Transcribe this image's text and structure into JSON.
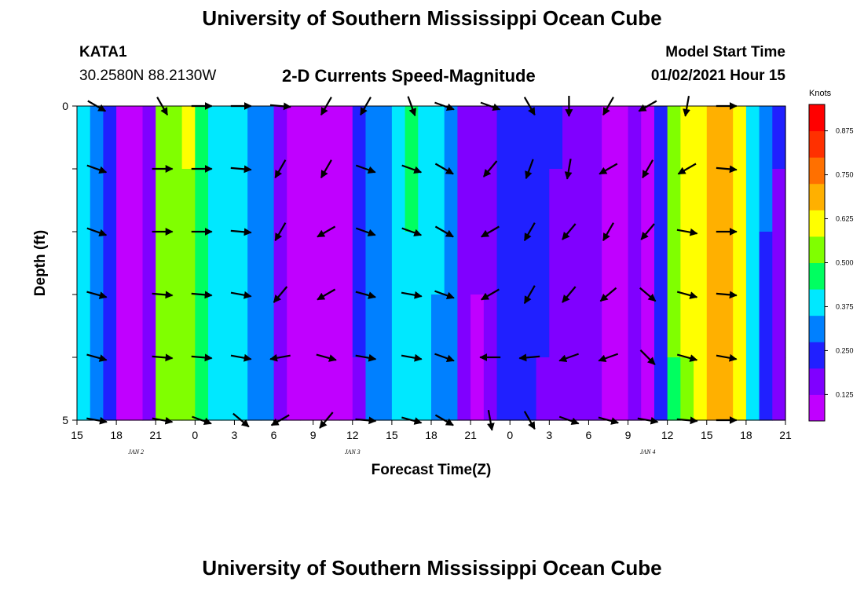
{
  "header": {
    "title": "University of Southern Mississippi Ocean Cube",
    "station_id": "KATA1",
    "station_coords": "30.2580N 88.2130W",
    "subtitle": "2-D Currents Speed-Magnitude",
    "model_start_label": "Model Start Time",
    "model_start_value": "01/02/2021 Hour 15"
  },
  "footer": {
    "title": "University of Southern Mississippi Ocean Cube"
  },
  "chart_data": {
    "type": "heatmap",
    "xlabel": "Forecast Time(Z)",
    "ylabel": "Depth (ft)",
    "units": "Knots",
    "xlim": [
      0,
      54
    ],
    "ylim": [
      5,
      0
    ],
    "x_ticks": [
      0,
      3,
      6,
      9,
      12,
      15,
      18,
      21,
      24,
      27,
      30,
      33,
      36,
      39,
      42,
      45,
      48,
      51,
      54
    ],
    "x_tick_labels": [
      "15",
      "18",
      "21",
      "0",
      "3",
      "6",
      "9",
      "12",
      "15",
      "18",
      "21",
      "0",
      "3",
      "6",
      "9",
      "12",
      "15",
      "18",
      "21"
    ],
    "y_ticks": [
      0,
      1,
      2,
      3,
      4,
      5
    ],
    "y_tick_labels": [
      "0",
      "",
      "",
      "",
      "",
      "5"
    ],
    "date_labels": [
      {
        "x": 4.5,
        "text": "JAN 2"
      },
      {
        "x": 21,
        "text": "JAN 3"
      },
      {
        "x": 43.5,
        "text": "JAN 4"
      }
    ],
    "colorbar": {
      "min": 0.05,
      "max": 0.95,
      "ticks": [
        0.125,
        0.25,
        0.375,
        0.5,
        0.625,
        0.75,
        0.875
      ],
      "tick_labels": [
        "0.125",
        "0.250",
        "0.375",
        "0.500",
        "0.625",
        "0.750",
        "0.875"
      ],
      "colors": [
        "#c000ff",
        "#8000ff",
        "#2020ff",
        "#0080ff",
        "#00e8ff",
        "#00ff60",
        "#80ff00",
        "#ffff00",
        "#ffb000",
        "#ff7000",
        "#ff3000",
        "#ff0000"
      ]
    },
    "time_hours": [
      0,
      1,
      2,
      3,
      4,
      5,
      6,
      7,
      8,
      9,
      10,
      11,
      12,
      13,
      14,
      15,
      16,
      17,
      18,
      19,
      20,
      21,
      22,
      23,
      24,
      25,
      26,
      27,
      28,
      29,
      30,
      31,
      32,
      33,
      34,
      35,
      36,
      37,
      38,
      39,
      40,
      41,
      42,
      43,
      44,
      45,
      46,
      47,
      48,
      49,
      50,
      51,
      52,
      53,
      54
    ],
    "depth_ft": [
      0.5,
      1.5,
      2.5,
      3.5,
      4.5
    ],
    "speed_profile_knots": [
      0.42,
      0.33,
      0.26,
      0.12,
      0.12,
      0.15,
      0.56,
      0.56,
      0.58,
      0.46,
      0.42,
      0.38,
      0.38,
      0.32,
      0.31,
      0.14,
      0.09,
      0.07,
      0.08,
      0.09,
      0.12,
      0.21,
      0.31,
      0.34,
      0.38,
      0.43,
      0.42,
      0.36,
      0.3,
      0.14,
      0.13,
      0.19,
      0.23,
      0.24,
      0.22,
      0.21,
      0.2,
      0.17,
      0.16,
      0.15,
      0.12,
      0.12,
      0.16,
      0.12,
      0.26,
      0.53,
      0.6,
      0.64,
      0.7,
      0.7,
      0.62,
      0.4,
      0.28,
      0.2,
      0.24
    ],
    "depth_speed_factor": [
      1.0,
      0.99,
      0.98,
      0.96,
      0.93
    ],
    "vector_times_hr": [
      1.5,
      6.5,
      9.5,
      12.5,
      15.5,
      19,
      22,
      25.5,
      28,
      31.5,
      34.5,
      37.5,
      40.5,
      43.5,
      46.5,
      49.5
    ],
    "vector_depths_ft": [
      0,
      1,
      2,
      3,
      4,
      5
    ],
    "vector_rows_deg": [
      [
        30,
        60,
        0,
        0,
        5,
        120,
        120,
        70,
        20,
        20,
        60,
        90,
        120,
        150,
        100,
        0
      ],
      [
        20,
        0,
        0,
        5,
        120,
        120,
        20,
        20,
        30,
        130,
        110,
        100,
        150,
        120,
        150,
        5
      ],
      [
        20,
        0,
        0,
        5,
        120,
        150,
        20,
        20,
        30,
        150,
        120,
        130,
        120,
        130,
        10,
        0
      ],
      [
        15,
        5,
        5,
        10,
        130,
        150,
        15,
        10,
        20,
        150,
        120,
        130,
        140,
        40,
        15,
        5
      ],
      [
        15,
        5,
        5,
        10,
        170,
        15,
        10,
        10,
        20,
        180,
        175,
        160,
        160,
        45,
        15,
        10
      ],
      [
        10,
        10,
        20,
        40,
        150,
        130,
        5,
        15,
        30,
        80,
        60,
        20,
        15,
        10,
        5,
        0
      ]
    ]
  }
}
